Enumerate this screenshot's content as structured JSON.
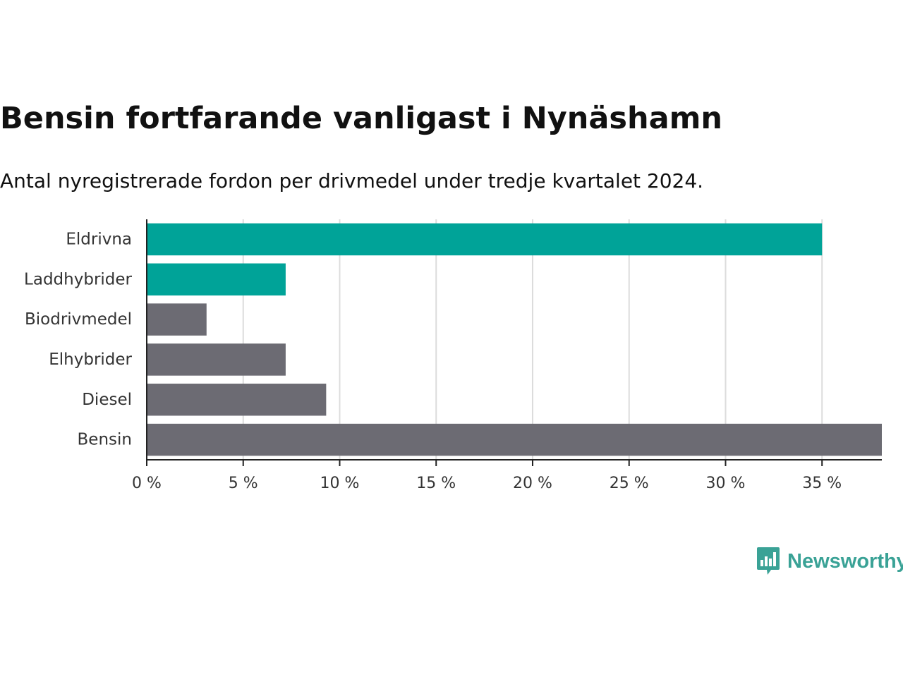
{
  "chart_data": {
    "type": "bar",
    "orientation": "horizontal",
    "title": "Bensin fortfarande vanligast i Nynäshamn",
    "subtitle": "Antal nyregistrerade fordon per drivmedel under tredje kvartalet 2024.",
    "categories": [
      "Eldrivna",
      "Laddhybrider",
      "Biodrivmedel",
      "Elhybrider",
      "Diesel",
      "Bensin"
    ],
    "values": [
      35.0,
      7.2,
      3.1,
      7.2,
      9.3,
      38.1
    ],
    "bar_colors": [
      "#00a398",
      "#00a398",
      "#6c6b73",
      "#6c6b73",
      "#6c6b73",
      "#6c6b73"
    ],
    "xlim": [
      0,
      38.1
    ],
    "xticks": [
      0,
      5,
      10,
      15,
      20,
      25,
      30,
      35
    ],
    "xtick_labels": [
      "0 %",
      "5 %",
      "10 %",
      "15 %",
      "20 %",
      "25 %",
      "30 %",
      "35 %"
    ],
    "xlabel": "",
    "ylabel": "",
    "grid": true
  },
  "branding": {
    "logo_text": "Newsworthy",
    "color": "#3aa296"
  }
}
